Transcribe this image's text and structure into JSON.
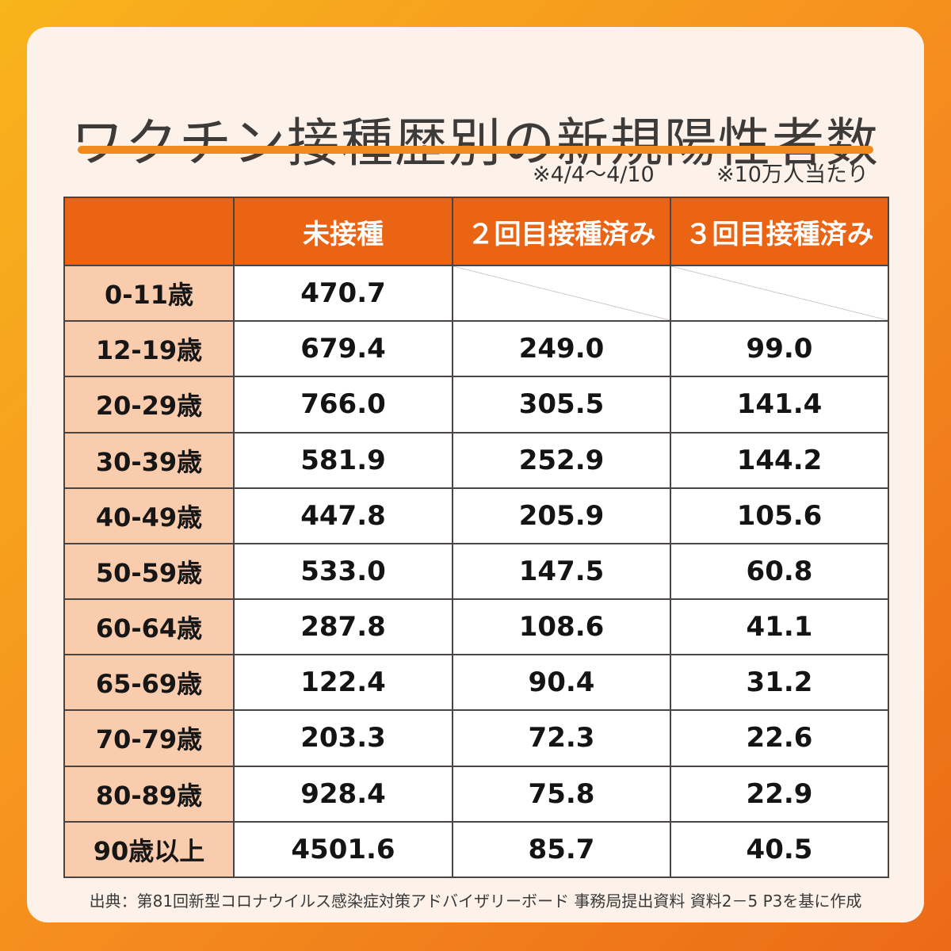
{
  "title": "ワクチン接種歴別の新規陽性者数",
  "notes": {
    "period": "※4/4～4/10",
    "unit": "※10万人当たり"
  },
  "table": {
    "headers": [
      "",
      "未接種",
      "２回目接種済み",
      "３回目接種済み"
    ],
    "rows": [
      {
        "age": "0-11歳",
        "cells": [
          "470.7",
          "",
          ""
        ]
      },
      {
        "age": "12-19歳",
        "cells": [
          "679.4",
          "249.0",
          "99.0"
        ]
      },
      {
        "age": "20-29歳",
        "cells": [
          "766.0",
          "305.5",
          "141.4"
        ]
      },
      {
        "age": "30-39歳",
        "cells": [
          "581.9",
          "252.9",
          "144.2"
        ]
      },
      {
        "age": "40-49歳",
        "cells": [
          "447.8",
          "205.9",
          "105.6"
        ]
      },
      {
        "age": "50-59歳",
        "cells": [
          "533.0",
          "147.5",
          "60.8"
        ]
      },
      {
        "age": "60-64歳",
        "cells": [
          "287.8",
          "108.6",
          "41.1"
        ]
      },
      {
        "age": "65-69歳",
        "cells": [
          "122.4",
          "90.4",
          "31.2"
        ]
      },
      {
        "age": "70-79歳",
        "cells": [
          "203.3",
          "72.3",
          "22.6"
        ]
      },
      {
        "age": "80-89歳",
        "cells": [
          "928.4",
          "75.8",
          "22.9"
        ]
      },
      {
        "age": "90歳以上",
        "cells": [
          "4501.6",
          "85.7",
          "40.5"
        ]
      }
    ]
  },
  "source": "出典：第81回新型コロナウイルス感染症対策アドバイザリーボード 事務局提出資料  資料2－5  P3を基に作成",
  "colors": {
    "header_bg": "#ea6414",
    "age_cell_bg": "#f9ccad",
    "accent_rule": "#f08a1d",
    "card_bg": "#fdf2e9"
  }
}
